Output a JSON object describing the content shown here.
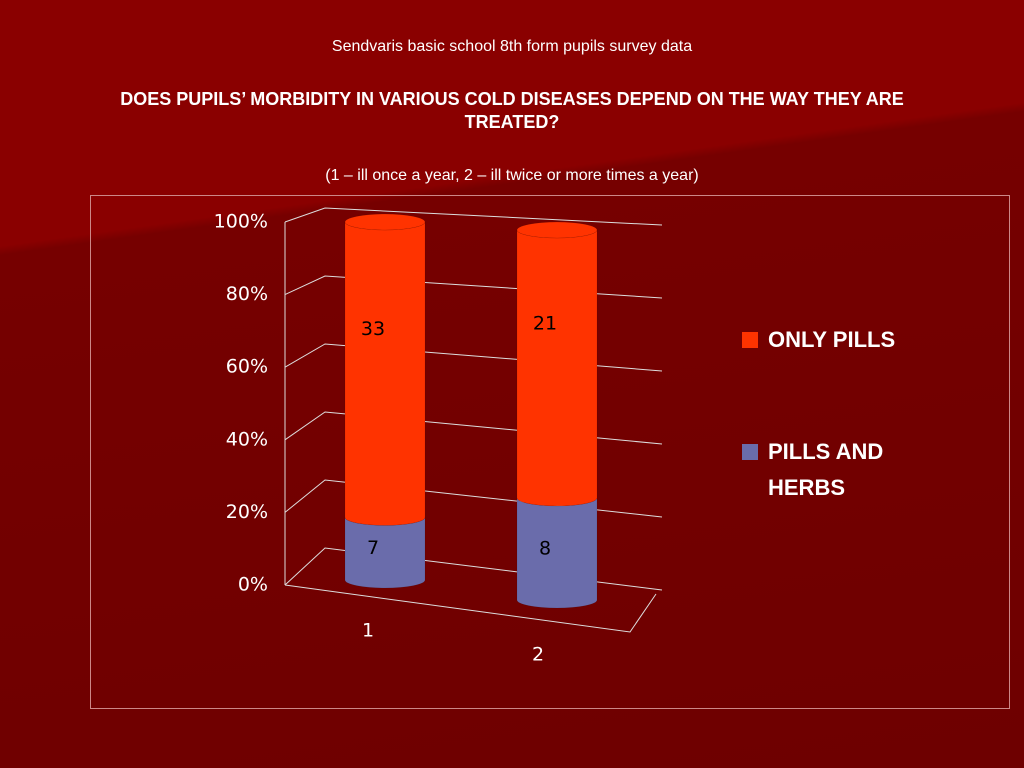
{
  "header": "Sendvaris basic school 8th form pupils survey data",
  "chart_data": {
    "type": "stacked-bar-100",
    "title": "DOES PUPILS’ MORBIDITY IN VARIOUS COLD DISEASES DEPEND ON THE WAY THEY ARE TREATED?",
    "subtitle": "(1 – ill once a year, 2 – ill twice or more times a year)",
    "categories": [
      "1",
      "2"
    ],
    "series": [
      {
        "name": "ONLY PILLS",
        "color": "#ff3300",
        "values": [
          33,
          21
        ]
      },
      {
        "name": "PILLS AND HERBS",
        "color": "#6a6cab",
        "values": [
          7,
          8
        ]
      }
    ],
    "ylim": [
      0,
      100
    ],
    "yticks": [
      {
        "value": 0,
        "label": "0%"
      },
      {
        "value": 20,
        "label": "20%"
      },
      {
        "value": 40,
        "label": "40%"
      },
      {
        "value": 60,
        "label": "60%"
      },
      {
        "value": 80,
        "label": "80%"
      },
      {
        "value": 100,
        "label": "100%"
      }
    ],
    "grid": true
  }
}
